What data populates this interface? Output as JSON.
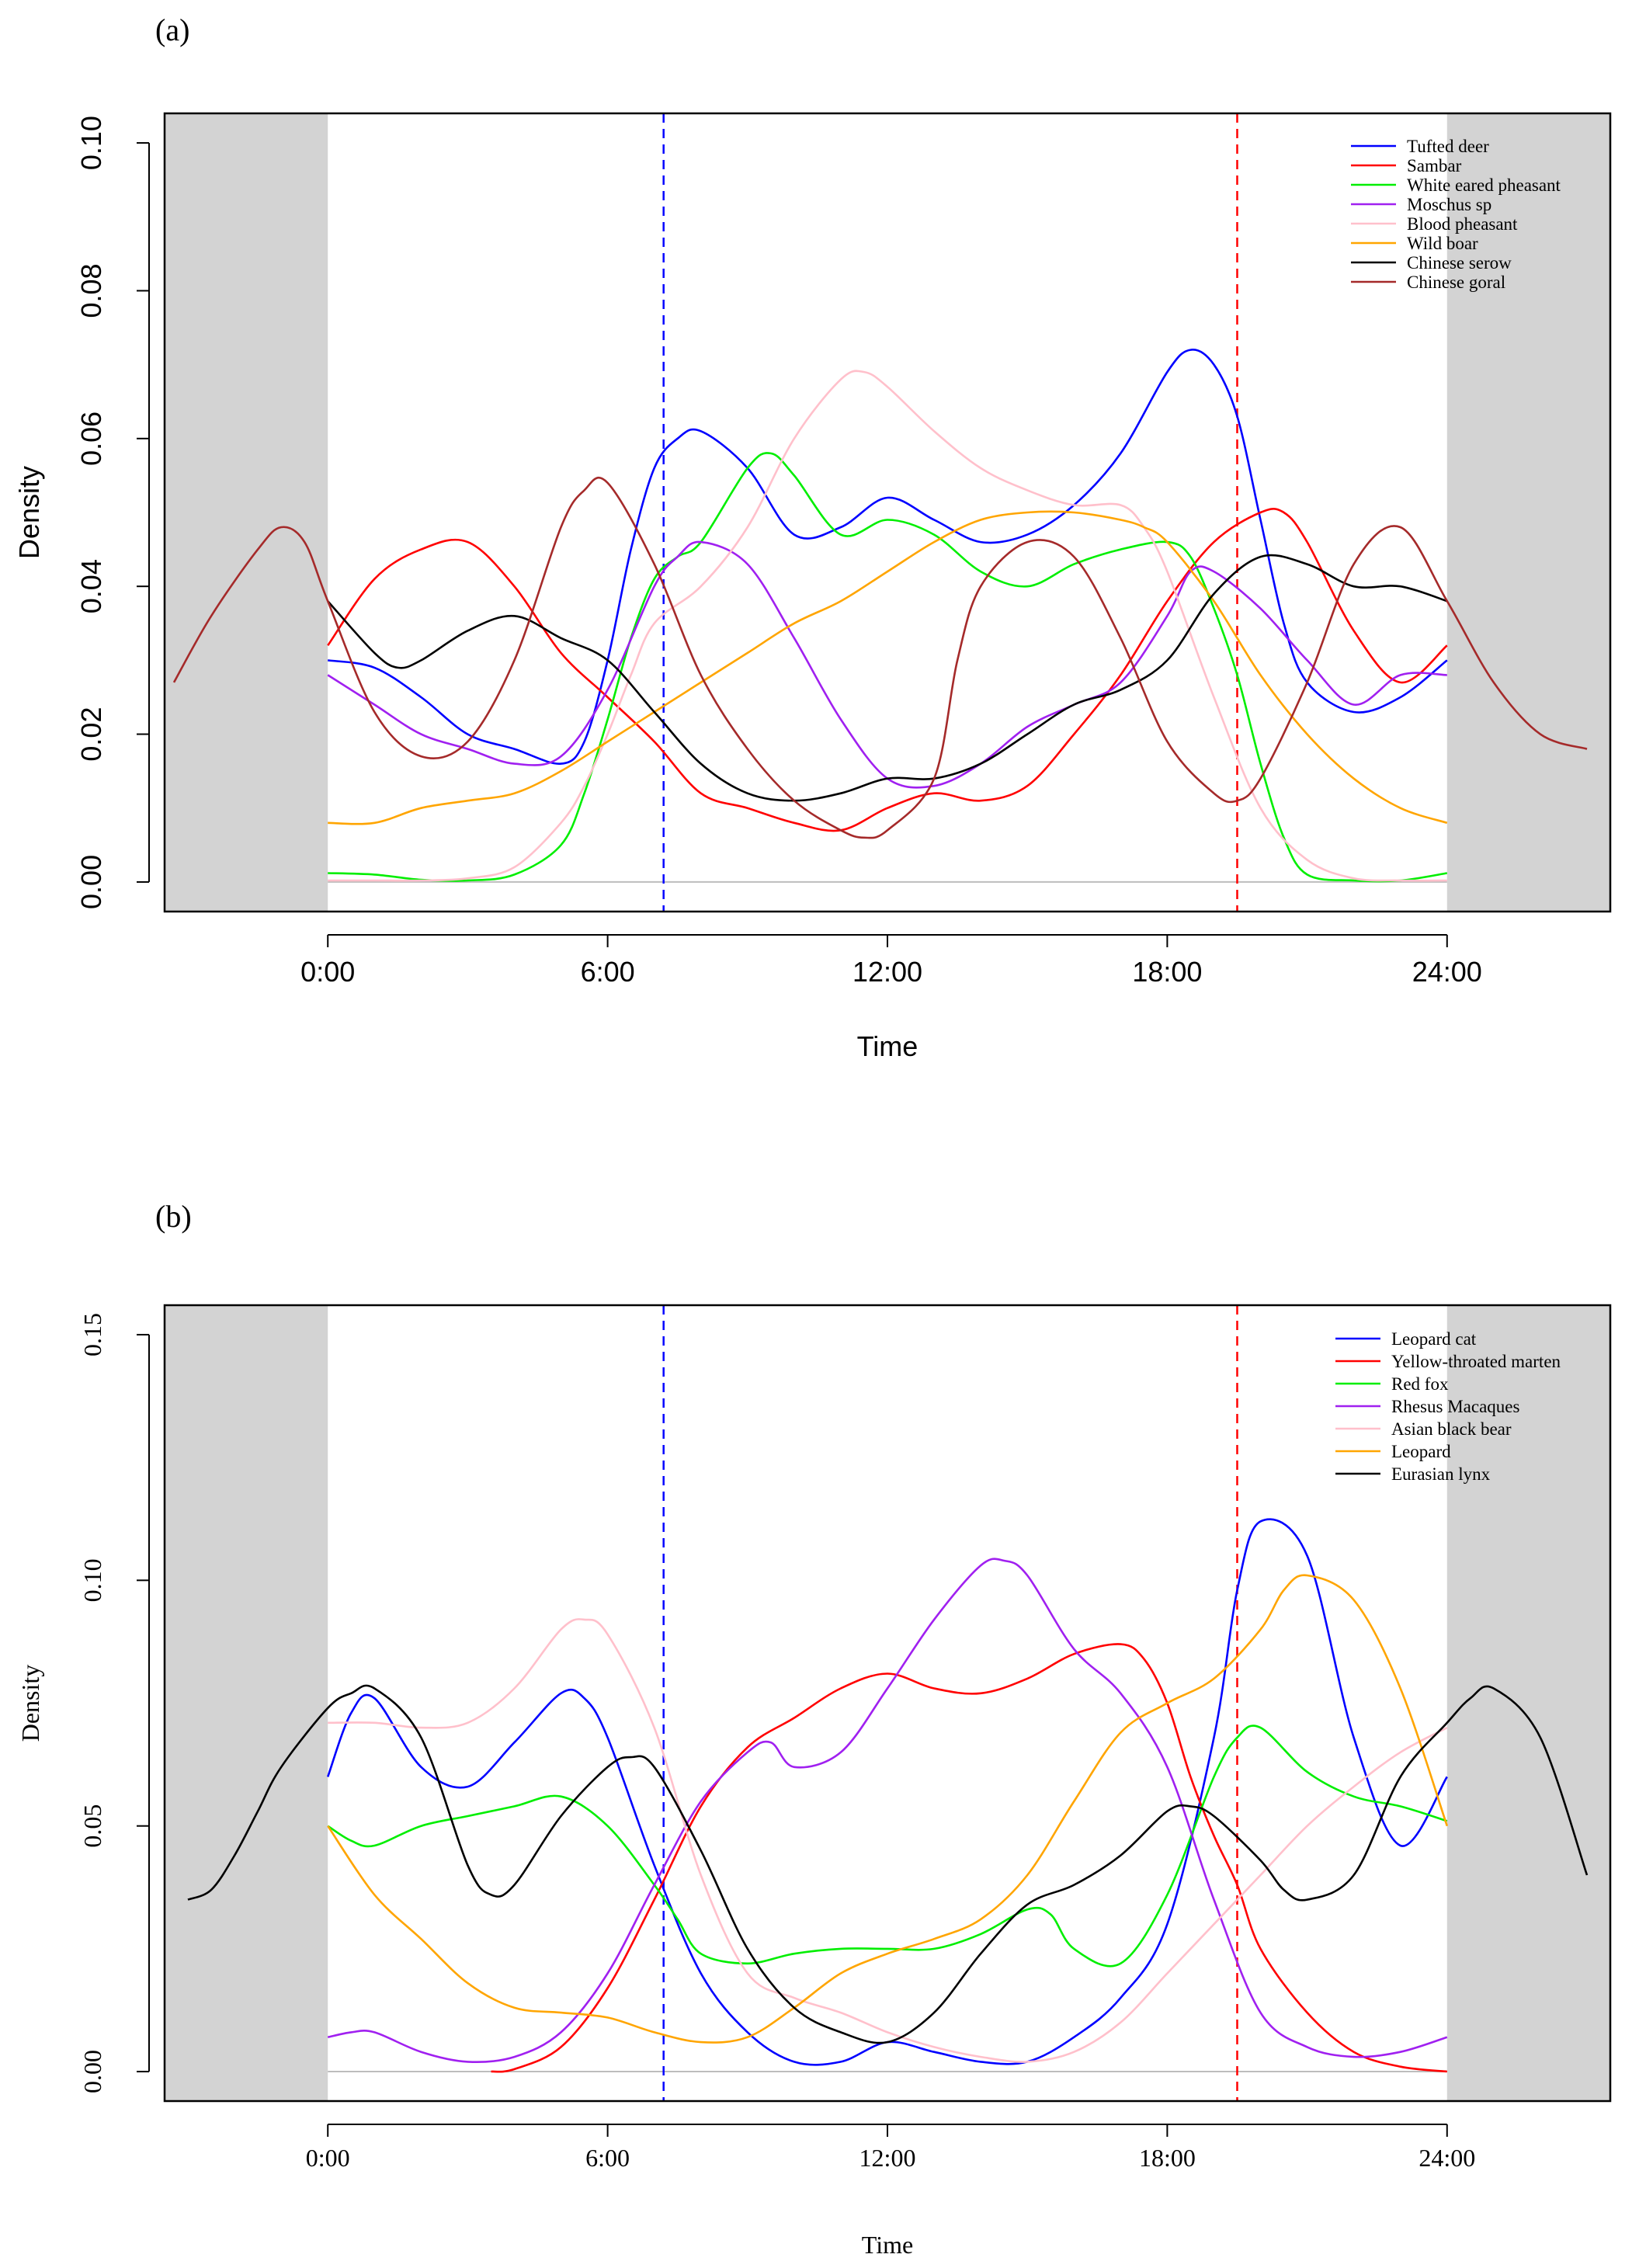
{
  "chart_data": [
    {
      "panel_label": "(a)",
      "type": "line",
      "xlabel": "Time",
      "ylabel": "Density",
      "xlim": [
        -3.5,
        27.5
      ],
      "ylim": [
        -0.004,
        0.104
      ],
      "x_ticks": [
        0,
        6,
        12,
        18,
        24
      ],
      "x_tick_labels": [
        "0:00",
        "6:00",
        "12:00",
        "18:00",
        "24:00"
      ],
      "y_ticks": [
        0,
        0.02,
        0.04,
        0.06,
        0.08,
        0.1
      ],
      "y_tick_labels": [
        "0.00",
        "0.02",
        "0.04",
        "0.06",
        "0.08",
        "0.10"
      ],
      "shaded_x_ranges": [
        [
          -3.5,
          0
        ],
        [
          24,
          27.5
        ]
      ],
      "sunrise_x": 7.2,
      "sunrise_color": "#0000ff",
      "sunset_x": 19.5,
      "sunset_color": "#ff0000",
      "legend_position": "top-right",
      "series": [
        {
          "name": "Tufted deer",
          "color": "#0000ff",
          "x": [
            0,
            1,
            2,
            3,
            4,
            5,
            5.5,
            6,
            6.5,
            7,
            7.5,
            8,
            9,
            10,
            11,
            12,
            13,
            14,
            15,
            16,
            17,
            18,
            18.5,
            19,
            19.5,
            20,
            20.5,
            21,
            22,
            23,
            24
          ],
          "y": [
            0.03,
            0.029,
            0.025,
            0.02,
            0.018,
            0.016,
            0.019,
            0.03,
            0.045,
            0.056,
            0.06,
            0.061,
            0.056,
            0.047,
            0.048,
            0.052,
            0.049,
            0.046,
            0.047,
            0.051,
            0.058,
            0.069,
            0.072,
            0.07,
            0.063,
            0.049,
            0.035,
            0.027,
            0.023,
            0.025,
            0.03
          ]
        },
        {
          "name": "Sambar",
          "color": "#ff0000",
          "x": [
            0,
            1,
            2,
            3,
            4,
            5,
            6,
            7,
            8,
            9,
            10,
            11,
            12,
            13,
            14,
            15,
            16,
            17,
            18,
            19,
            20,
            20.5,
            21,
            22,
            23,
            24
          ],
          "y": [
            0.032,
            0.041,
            0.045,
            0.046,
            0.04,
            0.031,
            0.025,
            0.019,
            0.012,
            0.01,
            0.008,
            0.007,
            0.01,
            0.012,
            0.011,
            0.013,
            0.02,
            0.028,
            0.038,
            0.046,
            0.05,
            0.05,
            0.046,
            0.034,
            0.027,
            0.032
          ]
        },
        {
          "name": "White eared pheasant",
          "color": "#00ee00",
          "x": [
            0,
            1,
            2,
            3,
            4,
            5,
            5.5,
            6,
            6.5,
            7,
            7.5,
            8,
            9,
            9.5,
            10,
            11,
            12,
            13,
            14,
            15,
            16,
            17,
            18,
            18.5,
            19,
            19.5,
            20,
            20.5,
            21,
            22,
            23,
            24
          ],
          "y": [
            0.0012,
            0.001,
            0.0003,
            0.0002,
            0.001,
            0.005,
            0.012,
            0.022,
            0.033,
            0.041,
            0.044,
            0.046,
            0.056,
            0.058,
            0.055,
            0.047,
            0.049,
            0.047,
            0.042,
            0.04,
            0.043,
            0.045,
            0.046,
            0.044,
            0.037,
            0.028,
            0.016,
            0.006,
            0.001,
            0.0002,
            0.0002,
            0.0012
          ]
        },
        {
          "name": "Moschus sp",
          "color": "#a020f0",
          "x": [
            0,
            1,
            2,
            3,
            4,
            5,
            6,
            7,
            7.5,
            8,
            9,
            10,
            11,
            12,
            13,
            14,
            15,
            16,
            17,
            18,
            18.5,
            19,
            20,
            21,
            22,
            23,
            24
          ],
          "y": [
            0.028,
            0.024,
            0.02,
            0.018,
            0.016,
            0.017,
            0.026,
            0.04,
            0.044,
            0.046,
            0.043,
            0.033,
            0.022,
            0.014,
            0.013,
            0.016,
            0.021,
            0.024,
            0.027,
            0.036,
            0.042,
            0.042,
            0.037,
            0.03,
            0.024,
            0.028,
            0.028
          ]
        },
        {
          "name": "Blood pheasant",
          "color": "#ffc0cb",
          "x": [
            0,
            1,
            2,
            3,
            4,
            5,
            5.5,
            6,
            6.5,
            7,
            8,
            9,
            10,
            11,
            11.5,
            12,
            13,
            14,
            15,
            16,
            17,
            17.5,
            18,
            19,
            20,
            21,
            22,
            23,
            24
          ],
          "y": [
            0.0002,
            0.0002,
            0.0002,
            0.0005,
            0.002,
            0.008,
            0.013,
            0.02,
            0.028,
            0.035,
            0.04,
            0.048,
            0.06,
            0.068,
            0.069,
            0.067,
            0.061,
            0.056,
            0.053,
            0.051,
            0.051,
            0.048,
            0.042,
            0.025,
            0.01,
            0.003,
            0.0005,
            0.0002,
            0.0002
          ]
        },
        {
          "name": "Wild boar",
          "color": "#ffa500",
          "x": [
            0,
            1,
            2,
            3,
            4,
            5,
            6,
            7,
            8,
            9,
            10,
            11,
            12,
            13,
            14,
            15,
            16,
            17,
            17.5,
            18,
            19,
            20,
            21,
            22,
            23,
            24
          ],
          "y": [
            0.008,
            0.008,
            0.01,
            0.011,
            0.012,
            0.015,
            0.019,
            0.023,
            0.027,
            0.031,
            0.035,
            0.038,
            0.042,
            0.046,
            0.049,
            0.05,
            0.05,
            0.049,
            0.048,
            0.046,
            0.038,
            0.028,
            0.02,
            0.014,
            0.01,
            0.008
          ]
        },
        {
          "name": "Chinese serow",
          "color": "#000000",
          "x": [
            0,
            1,
            1.5,
            2,
            3,
            4,
            5,
            6,
            7,
            8,
            9,
            10,
            11,
            12,
            13,
            14,
            15,
            16,
            17,
            18,
            19,
            20,
            21,
            22,
            23,
            24
          ],
          "y": [
            0.038,
            0.031,
            0.029,
            0.03,
            0.034,
            0.036,
            0.033,
            0.03,
            0.023,
            0.016,
            0.012,
            0.011,
            0.012,
            0.014,
            0.014,
            0.016,
            0.02,
            0.024,
            0.026,
            0.03,
            0.039,
            0.044,
            0.043,
            0.04,
            0.04,
            0.038
          ]
        },
        {
          "name": "Chinese goral",
          "color": "#a52a2a",
          "x": [
            -3.3,
            -2.5,
            -1.5,
            -1,
            -0.5,
            0,
            1,
            2,
            3,
            4,
            5,
            5.5,
            6,
            7,
            8,
            9,
            10,
            11,
            11.5,
            12,
            13,
            13.5,
            14,
            15,
            16,
            17,
            18,
            19,
            19.5,
            20,
            21,
            22,
            23,
            24,
            25,
            26,
            27
          ],
          "y": [
            0.027,
            0.036,
            0.045,
            0.048,
            0.046,
            0.038,
            0.023,
            0.017,
            0.019,
            0.03,
            0.048,
            0.053,
            0.054,
            0.043,
            0.028,
            0.018,
            0.011,
            0.007,
            0.006,
            0.007,
            0.014,
            0.03,
            0.04,
            0.046,
            0.044,
            0.033,
            0.019,
            0.012,
            0.011,
            0.014,
            0.027,
            0.043,
            0.048,
            0.038,
            0.027,
            0.02,
            0.018
          ]
        }
      ]
    },
    {
      "panel_label": "(b)",
      "type": "line",
      "xlabel": "Time",
      "ylabel": "Density",
      "xlim": [
        -3.5,
        27.5
      ],
      "ylim": [
        -0.006,
        0.156
      ],
      "x_ticks": [
        0,
        6,
        12,
        18,
        24
      ],
      "x_tick_labels": [
        "0:00",
        "6:00",
        "12:00",
        "18:00",
        "24:00"
      ],
      "y_ticks": [
        0,
        0.05,
        0.1,
        0.15
      ],
      "y_tick_labels": [
        "0.00",
        "0.05",
        "0.10",
        "0.15"
      ],
      "shaded_x_ranges": [
        [
          -3.5,
          0
        ],
        [
          24,
          27.5
        ]
      ],
      "sunrise_x": 7.2,
      "sunrise_color": "#0000ff",
      "sunset_x": 19.5,
      "sunset_color": "#ff0000",
      "legend_position": "top-right",
      "series": [
        {
          "name": "Leopard cat",
          "color": "#0000ff",
          "x": [
            0,
            0.5,
            1,
            2,
            3,
            4,
            5,
            5.5,
            6,
            7,
            8,
            9,
            10,
            11,
            12,
            13,
            14,
            15,
            16,
            17,
            18,
            19,
            19.5,
            20,
            21,
            22,
            23,
            24
          ],
          "y": [
            0.06,
            0.073,
            0.076,
            0.062,
            0.058,
            0.067,
            0.077,
            0.076,
            0.068,
            0.042,
            0.02,
            0.008,
            0.002,
            0.002,
            0.006,
            0.004,
            0.002,
            0.002,
            0.007,
            0.015,
            0.03,
            0.068,
            0.098,
            0.112,
            0.105,
            0.068,
            0.046,
            0.06
          ]
        },
        {
          "name": "Yellow-throated marten",
          "color": "#ff0000",
          "x": [
            3.5,
            4,
            5,
            6,
            7,
            8,
            9,
            10,
            11,
            12,
            13,
            14,
            15,
            16,
            17,
            17.5,
            18,
            18.5,
            19,
            19.5,
            20,
            21,
            22,
            23,
            24
          ],
          "y": [
            0.0,
            0.0005,
            0.005,
            0.017,
            0.035,
            0.054,
            0.066,
            0.072,
            0.078,
            0.081,
            0.078,
            0.077,
            0.08,
            0.085,
            0.087,
            0.084,
            0.075,
            0.06,
            0.048,
            0.038,
            0.025,
            0.012,
            0.004,
            0.001,
            0.0
          ]
        },
        {
          "name": "Red fox",
          "color": "#00ee00",
          "x": [
            0,
            0.5,
            1,
            2,
            3,
            4,
            5,
            6,
            7,
            7.5,
            8,
            9,
            10,
            11,
            12,
            13,
            14,
            15,
            15.5,
            16,
            17,
            18,
            19,
            19.5,
            20,
            21,
            22,
            23,
            24
          ],
          "y": [
            0.05,
            0.047,
            0.046,
            0.05,
            0.052,
            0.054,
            0.056,
            0.05,
            0.038,
            0.031,
            0.024,
            0.022,
            0.024,
            0.025,
            0.025,
            0.025,
            0.028,
            0.033,
            0.032,
            0.025,
            0.022,
            0.036,
            0.06,
            0.068,
            0.07,
            0.061,
            0.056,
            0.054,
            0.051
          ]
        },
        {
          "name": "Rhesus Macaques",
          "color": "#a020f0",
          "x": [
            0,
            0.5,
            1,
            2,
            3,
            4,
            5,
            6,
            7,
            8,
            9,
            9.5,
            10,
            11,
            12,
            13,
            14,
            14.5,
            15,
            16,
            17,
            18,
            19,
            20,
            21,
            22,
            23,
            24
          ],
          "y": [
            0.007,
            0.008,
            0.008,
            0.004,
            0.002,
            0.003,
            0.008,
            0.02,
            0.038,
            0.055,
            0.065,
            0.067,
            0.062,
            0.065,
            0.078,
            0.092,
            0.103,
            0.104,
            0.101,
            0.086,
            0.077,
            0.062,
            0.035,
            0.012,
            0.005,
            0.003,
            0.004,
            0.007
          ]
        },
        {
          "name": "Asian black bear",
          "color": "#ffc0cb",
          "x": [
            0,
            1,
            2,
            3,
            4,
            5,
            5.5,
            6,
            7,
            8,
            9,
            10,
            11,
            12,
            13,
            14,
            15,
            16,
            17,
            18,
            19,
            20,
            21,
            22,
            23,
            24
          ],
          "y": [
            0.071,
            0.071,
            0.07,
            0.071,
            0.078,
            0.09,
            0.092,
            0.089,
            0.07,
            0.04,
            0.02,
            0.015,
            0.012,
            0.008,
            0.005,
            0.003,
            0.002,
            0.004,
            0.01,
            0.02,
            0.03,
            0.04,
            0.05,
            0.058,
            0.065,
            0.07
          ]
        },
        {
          "name": "Leopard",
          "color": "#ffa500",
          "x": [
            0,
            1,
            2,
            3,
            4,
            5,
            6,
            7,
            8,
            9,
            10,
            11,
            12,
            13,
            14,
            15,
            16,
            17,
            18,
            19,
            20,
            20.5,
            21,
            22,
            23,
            24
          ],
          "y": [
            0.05,
            0.036,
            0.027,
            0.018,
            0.013,
            0.012,
            0.011,
            0.008,
            0.006,
            0.007,
            0.013,
            0.02,
            0.024,
            0.027,
            0.031,
            0.04,
            0.055,
            0.069,
            0.075,
            0.08,
            0.09,
            0.098,
            0.101,
            0.096,
            0.078,
            0.05
          ]
        },
        {
          "name": "Eurasian lynx",
          "color": "#000000",
          "x": [
            -3,
            -2.5,
            -2,
            -1.5,
            -1,
            0,
            0.5,
            1,
            2,
            3,
            3.5,
            4,
            5,
            6,
            6.5,
            7,
            8,
            9,
            10,
            11,
            12,
            13,
            14,
            15,
            16,
            17,
            18,
            18.5,
            19,
            20,
            20.5,
            21,
            22,
            23,
            24,
            24.5,
            25,
            26,
            27
          ],
          "y": [
            0.035,
            0.037,
            0.044,
            0.053,
            0.062,
            0.074,
            0.077,
            0.078,
            0.068,
            0.042,
            0.036,
            0.038,
            0.052,
            0.062,
            0.064,
            0.062,
            0.045,
            0.025,
            0.013,
            0.008,
            0.006,
            0.012,
            0.024,
            0.034,
            0.038,
            0.044,
            0.053,
            0.054,
            0.052,
            0.043,
            0.037,
            0.035,
            0.04,
            0.06,
            0.071,
            0.076,
            0.078,
            0.068,
            0.04
          ]
        }
      ]
    }
  ]
}
